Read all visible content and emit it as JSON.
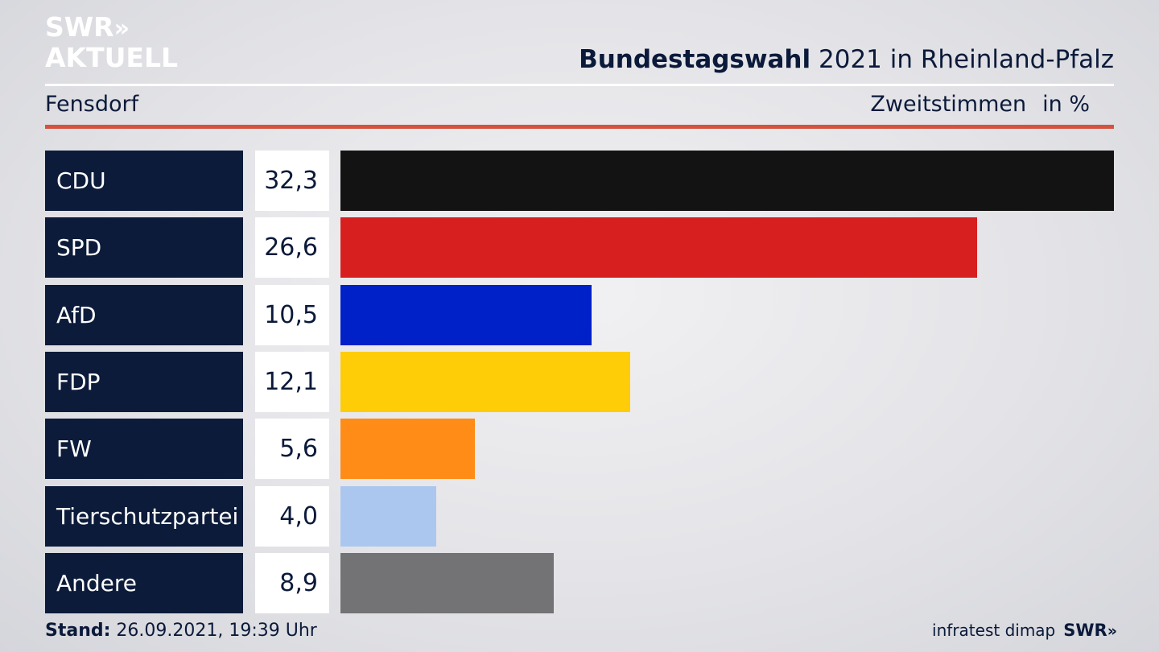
{
  "logo": {
    "line1": "SWR",
    "line1_chevrons": "»",
    "line2": "AKTUELL"
  },
  "header": {
    "title_bold": "Bundestagswahl",
    "title_rest": "2021 in Rheinland-Pfalz",
    "region": "Fensdorf",
    "votes_label": "Zweitstimmen",
    "unit_label": "in %"
  },
  "chart_data": {
    "type": "bar",
    "orientation": "horizontal",
    "categories": [
      "CDU",
      "SPD",
      "AfD",
      "FDP",
      "FW",
      "Tierschutzpartei",
      "Andere"
    ],
    "values": [
      32.3,
      26.6,
      10.5,
      12.1,
      5.6,
      4.0,
      8.9
    ],
    "value_labels": [
      "32,3",
      "26,6",
      "10,5",
      "12,1",
      "5,6",
      "4,0",
      "8,9"
    ],
    "colors": [
      "#131313",
      "#d81f1f",
      "#0020c8",
      "#ffcc08",
      "#ff8c17",
      "#abc7ef",
      "#737375"
    ],
    "xlim": [
      0,
      32.3
    ],
    "grid": false
  },
  "footer": {
    "stand_label": "Stand:",
    "stand_value": "26.09.2021, 19:39 Uhr",
    "source": "infratest dimap",
    "brand": "SWR",
    "brand_chevrons": "»"
  }
}
